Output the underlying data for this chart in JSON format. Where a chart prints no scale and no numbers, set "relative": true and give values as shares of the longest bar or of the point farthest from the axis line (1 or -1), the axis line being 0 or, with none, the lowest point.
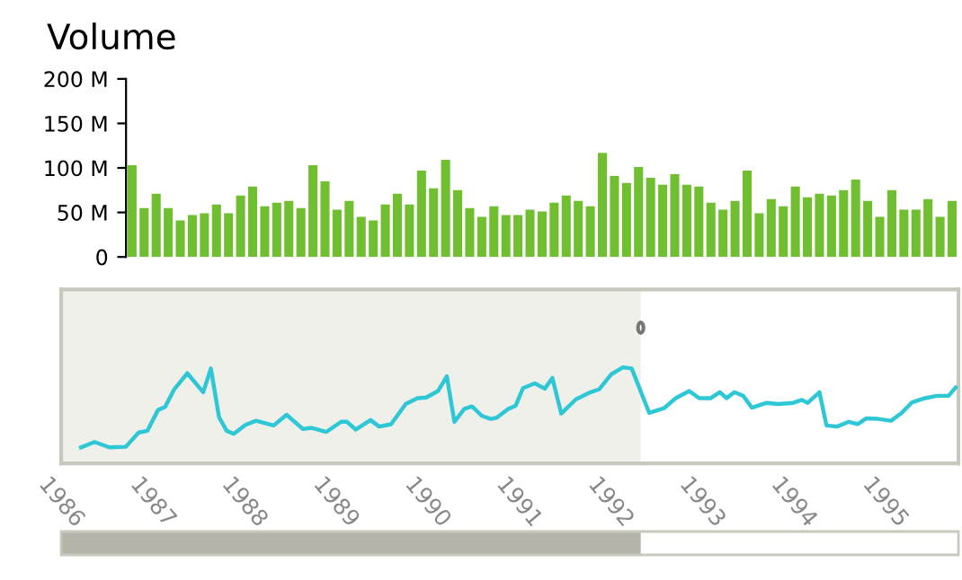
{
  "chart_data": [
    {
      "type": "bar",
      "title": "Volume",
      "categories": [
        null,
        null,
        null,
        null,
        null,
        null,
        null,
        null,
        null,
        null,
        null,
        null,
        null,
        null,
        null,
        null,
        null,
        null,
        null,
        null,
        null,
        null,
        null,
        null,
        null,
        null,
        null,
        null,
        null,
        null,
        null,
        null,
        null,
        null,
        null,
        null,
        null,
        null,
        null,
        null,
        null,
        null,
        null,
        null,
        null,
        null,
        null,
        null,
        null,
        null,
        null,
        null,
        null,
        null,
        null,
        null,
        null,
        null,
        null,
        null,
        null,
        null,
        null,
        null,
        null,
        null,
        null,
        null,
        null
      ],
      "values": [
        103,
        55,
        71,
        55,
        41,
        47,
        49,
        59,
        49,
        69,
        79,
        57,
        61,
        63,
        55,
        103,
        85,
        53,
        63,
        45,
        41,
        59,
        71,
        59,
        97,
        77,
        109,
        75,
        55,
        45,
        57,
        47,
        47,
        53,
        51,
        61,
        69,
        63,
        57,
        117,
        91,
        83,
        101,
        89,
        81,
        93,
        81,
        79,
        61,
        53,
        63,
        97,
        49,
        65,
        57,
        79,
        67,
        71,
        69,
        75,
        87,
        63,
        45,
        75,
        53,
        53,
        65,
        45,
        63
      ],
      "color": "#6fbf30",
      "ylim": [
        0,
        200
      ],
      "yticks": [
        {
          "value": 0,
          "label": "0"
        },
        {
          "value": 50,
          "label": "50 M"
        },
        {
          "value": 100,
          "label": "100 M"
        },
        {
          "value": 150,
          "label": "150 M"
        },
        {
          "value": 200,
          "label": "200 M"
        }
      ],
      "tick_labels": "y",
      "grid": false
    },
    {
      "type": "line",
      "relative": true,
      "color": "#2ec7d6",
      "x": [
        1986.217,
        1986.365,
        1986.526,
        1986.706,
        1986.846,
        1986.942,
        1987.058,
        1987.135,
        1987.231,
        1987.378,
        1987.551,
        1987.635,
        1987.724,
        1987.808,
        1987.885,
        1988.013,
        1988.128,
        1988.321,
        1988.462,
        1988.641,
        1988.737,
        1988.897,
        1989.058,
        1989.122,
        1989.218,
        1989.378,
        1989.474,
        1989.603,
        1989.763,
        1989.891,
        1989.987,
        1990.115,
        1990.212,
        1990.295,
        1990.404,
        1990.487,
        1990.596,
        1990.692,
        1990.756,
        1990.885,
        1990.962,
        1991.045,
        1991.173,
        1991.282,
        1991.365,
        1991.462,
        1991.622,
        1991.782,
        1991.878,
        1992.006,
        1992.135,
        1992.231,
        1992.423,
        1992.583,
        1992.712,
        1992.859,
        1992.968,
        1993.096,
        1993.192,
        1993.269,
        1993.353,
        1993.449,
        1993.545,
        1993.705,
        1993.833,
        1993.994,
        1994.09,
        1994.154,
        1994.282,
        1994.359,
        1994.474,
        1994.603,
        1994.699,
        1994.795,
        1994.923,
        1995.064,
        1995.179,
        1995.295,
        1995.436,
        1995.564,
        1995.692,
        1995.769
      ],
      "values": [
        0.167,
        0.223,
        0.167,
        0.173,
        0.321,
        0.339,
        0.556,
        0.587,
        0.766,
        0.938,
        0.741,
        0.988,
        0.482,
        0.339,
        0.308,
        0.401,
        0.444,
        0.395,
        0.506,
        0.358,
        0.37,
        0.328,
        0.433,
        0.433,
        0.352,
        0.451,
        0.383,
        0.408,
        0.618,
        0.679,
        0.685,
        0.753,
        0.907,
        0.433,
        0.568,
        0.593,
        0.494,
        0.463,
        0.475,
        0.568,
        0.599,
        0.784,
        0.833,
        0.778,
        0.889,
        0.518,
        0.667,
        0.741,
        0.772,
        0.926,
        1,
        0.988,
        0.525,
        0.574,
        0.679,
        0.753,
        0.679,
        0.679,
        0.741,
        0.679,
        0.741,
        0.703,
        0.58,
        0.63,
        0.618,
        0.63,
        0.661,
        0.63,
        0.741,
        0.395,
        0.383,
        0.433,
        0.408,
        0.469,
        0.463,
        0.444,
        0.525,
        0.636,
        0.679,
        0.703,
        0.703,
        0.79
      ],
      "xlim": [
        1986,
        1995.8
      ],
      "xticks": [
        1986,
        1987,
        1988,
        1989,
        1990,
        1991,
        1992,
        1993,
        1994,
        1995
      ],
      "bands": [
        {
          "axis": "x",
          "from": 1986,
          "to": 1992.33,
          "color": "#f0f0eb"
        }
      ],
      "tick_labels": "x",
      "grid": false
    }
  ]
}
